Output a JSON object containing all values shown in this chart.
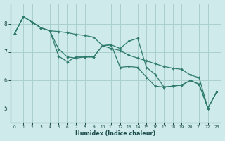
{
  "xlabel": "Humidex (Indice chaleur)",
  "xlim": [
    -0.5,
    23.5
  ],
  "ylim": [
    4.5,
    8.7
  ],
  "xticks": [
    0,
    1,
    2,
    3,
    4,
    5,
    6,
    7,
    8,
    9,
    10,
    11,
    12,
    13,
    14,
    15,
    16,
    17,
    18,
    19,
    20,
    21,
    22,
    23
  ],
  "yticks": [
    5,
    6,
    7,
    8
  ],
  "background_color": "#ceeaea",
  "grid_color": "#aacece",
  "line_color": "#2e7b6e",
  "series1_x": [
    0,
    1,
    2,
    3,
    4,
    5,
    6,
    7,
    8,
    9,
    10,
    11,
    12,
    13,
    14,
    15,
    16,
    17,
    18,
    19,
    20,
    21,
    22,
    23
  ],
  "series1_y": [
    7.65,
    8.25,
    8.05,
    7.85,
    7.75,
    6.85,
    6.65,
    6.82,
    6.82,
    6.82,
    7.22,
    7.25,
    7.12,
    7.38,
    7.48,
    6.45,
    6.2,
    5.75,
    5.78,
    5.82,
    5.98,
    5.85,
    5.0,
    5.58
  ],
  "series2_x": [
    0,
    1,
    2,
    3,
    4,
    5,
    6,
    7,
    8,
    9,
    10,
    11,
    12,
    13,
    14,
    15,
    16,
    17,
    18,
    19,
    20,
    21,
    22,
    23
  ],
  "series2_y": [
    7.65,
    8.25,
    8.05,
    7.85,
    7.75,
    7.72,
    7.68,
    7.62,
    7.58,
    7.52,
    7.22,
    7.12,
    7.05,
    6.88,
    6.78,
    6.68,
    6.58,
    6.48,
    6.42,
    6.38,
    6.18,
    6.08,
    5.0,
    5.58
  ],
  "series3_x": [
    0,
    1,
    2,
    3,
    4,
    5,
    6,
    7,
    8,
    9,
    10,
    11,
    12,
    13,
    14,
    15,
    16,
    17,
    18,
    19,
    20,
    21,
    22,
    23
  ],
  "series3_y": [
    7.65,
    8.25,
    8.05,
    7.85,
    7.75,
    7.1,
    6.82,
    6.78,
    6.82,
    6.82,
    7.22,
    7.25,
    6.45,
    6.48,
    6.45,
    6.1,
    5.78,
    5.75,
    5.78,
    5.82,
    5.98,
    5.85,
    5.0,
    5.58
  ]
}
